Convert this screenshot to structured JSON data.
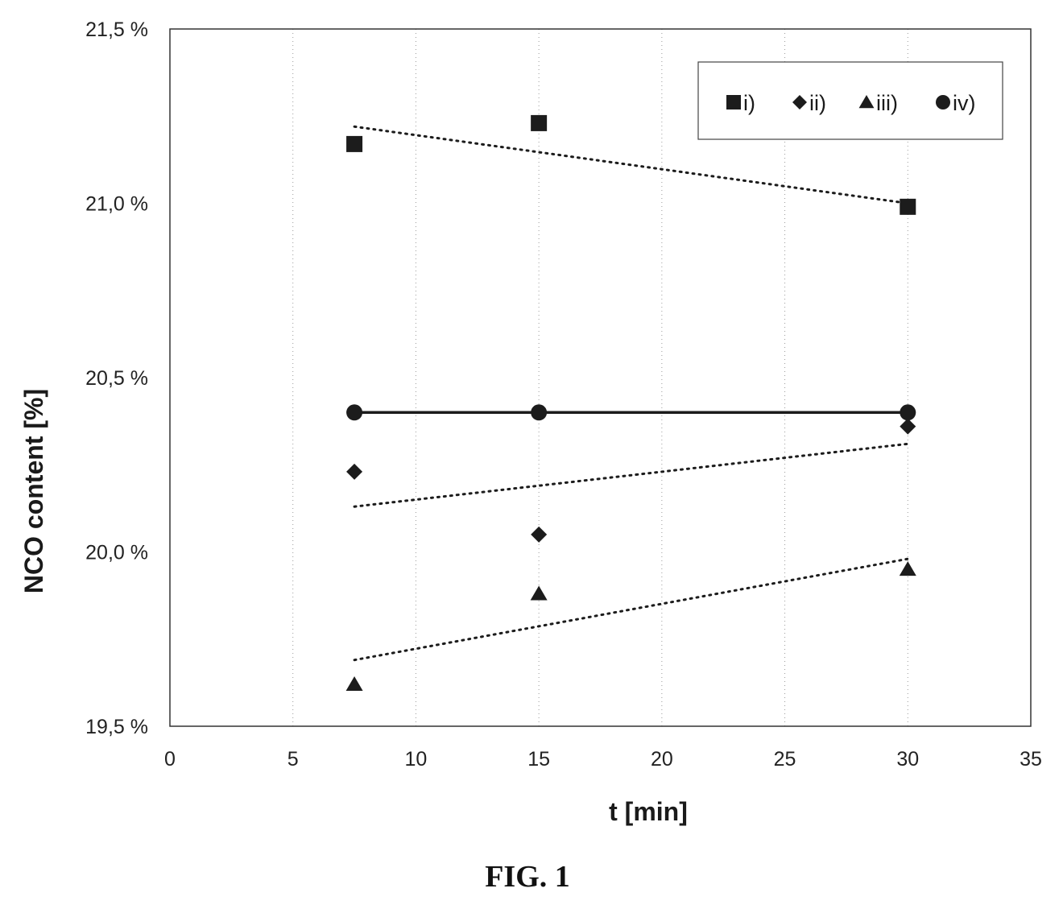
{
  "chart_data": {
    "type": "scatter",
    "xlabel": "t [min]",
    "ylabel": "NCO content [%]",
    "xlim": [
      0,
      35
    ],
    "ylim": [
      19.5,
      21.5
    ],
    "x_ticks": [
      0,
      5,
      10,
      15,
      20,
      25,
      30,
      35
    ],
    "x_tick_labels": [
      "0",
      "5",
      "10",
      "15",
      "20",
      "25",
      "30",
      "35"
    ],
    "y_ticks": [
      19.5,
      20.0,
      20.5,
      21.0,
      21.5
    ],
    "y_tick_labels": [
      "19,5 %",
      "20,0 %",
      "20,5 %",
      "21,0 %",
      "21,5 %"
    ],
    "grid": "vertical dotted",
    "legend_position": "top-right",
    "series": [
      {
        "name": "i)",
        "marker": "square",
        "x": [
          7.5,
          15,
          30
        ],
        "y": [
          21.17,
          21.23,
          20.99
        ],
        "trendline": {
          "style": "dotted",
          "x": [
            7.5,
            30
          ],
          "y": [
            21.22,
            21.0
          ]
        }
      },
      {
        "name": "ii)",
        "marker": "diamond",
        "x": [
          7.5,
          15,
          30
        ],
        "y": [
          20.23,
          20.05,
          20.36
        ],
        "trendline": {
          "style": "dotted",
          "x": [
            7.5,
            30
          ],
          "y": [
            20.13,
            20.31
          ]
        }
      },
      {
        "name": "iii)",
        "marker": "triangle",
        "x": [
          7.5,
          15,
          30
        ],
        "y": [
          19.62,
          19.88,
          19.95
        ],
        "trendline": {
          "style": "dotted",
          "x": [
            7.5,
            30
          ],
          "y": [
            19.69,
            19.98
          ]
        }
      },
      {
        "name": "iv)",
        "marker": "circle",
        "x": [
          7.5,
          15,
          30
        ],
        "y": [
          20.4,
          20.4,
          20.4
        ],
        "line": {
          "style": "solid"
        }
      }
    ]
  },
  "caption": "FIG. 1",
  "colors": {
    "marker": "#1c1c1c",
    "axis": "#333333",
    "grid": "#9a9a9a"
  }
}
